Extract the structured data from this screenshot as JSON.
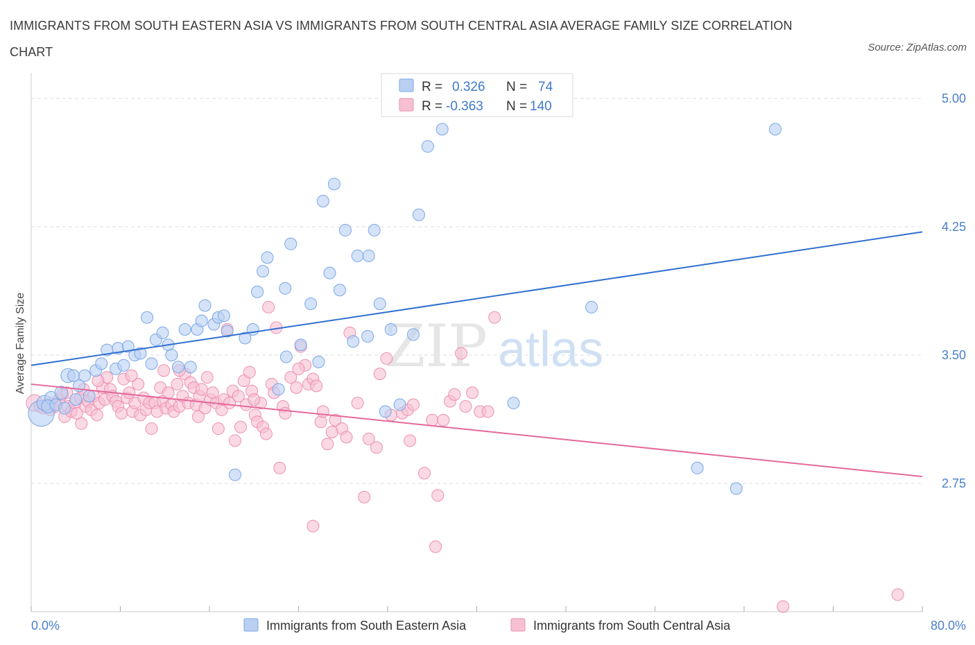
{
  "title": "IMMIGRANTS FROM SOUTH EASTERN ASIA VS IMMIGRANTS FROM SOUTH CENTRAL ASIA AVERAGE FAMILY SIZE CORRELATION CHART",
  "source": "Source: ZipAtlas.com",
  "watermark": {
    "zip": "ZIP",
    "atlas": "atlas"
  },
  "colors": {
    "blue_fill": "#b9d0f3",
    "blue_stroke": "#7aa6e6",
    "blue_line": "#2f6fd0",
    "pink_fill": "#f6c0d2",
    "pink_stroke": "#ee8fb1",
    "pink_line": "#e5689a",
    "grid": "#dddddd",
    "axis_text": "#4a7fc8"
  },
  "legend": {
    "r_label": "R =",
    "n_label": "N =",
    "items": [
      {
        "series": "blue",
        "r": "0.326",
        "n": "74"
      },
      {
        "series": "pink",
        "r": "-0.363",
        "n": "140"
      }
    ]
  },
  "chart_data": {
    "type": "scatter",
    "ylabel": "Average Family Size",
    "xlim": [
      0,
      80
    ],
    "ylim": [
      2.0,
      5.15
    ],
    "x_tick_labels": {
      "left": "0.0%",
      "right": "80.0%"
    },
    "y_ticks": [
      {
        "value": 5.0,
        "label": "5.00"
      },
      {
        "value": 4.25,
        "label": "4.25"
      },
      {
        "value": 3.5,
        "label": "3.50"
      },
      {
        "value": 2.75,
        "label": "2.75"
      }
    ],
    "grid": true,
    "series": [
      {
        "key": "blue",
        "name": "Immigrants from South Eastern Asia",
        "trend": {
          "x0": 0,
          "y0": 3.44,
          "x1": 80,
          "y1": 4.22
        },
        "points": [
          [
            0.9,
            3.16,
            2.2
          ],
          [
            1.2,
            3.22,
            1.3
          ],
          [
            1.8,
            3.25,
            1.1
          ],
          [
            2.7,
            3.28,
            1.1
          ],
          [
            3.3,
            3.38,
            1.2
          ],
          [
            3.8,
            3.38,
            1.0
          ],
          [
            4.3,
            3.32,
            1.0
          ],
          [
            4.8,
            3.38,
            1.0
          ],
          [
            5.2,
            3.26,
            1.0
          ],
          [
            5.8,
            3.41,
            1.0
          ],
          [
            6.3,
            3.45,
            1.0
          ],
          [
            6.8,
            3.53,
            1.0
          ],
          [
            7.6,
            3.42,
            1.0
          ],
          [
            7.8,
            3.54,
            1.0
          ],
          [
            8.3,
            3.44,
            1.0
          ],
          [
            8.7,
            3.55,
            1.0
          ],
          [
            9.3,
            3.5,
            1.0
          ],
          [
            9.8,
            3.51,
            1.0
          ],
          [
            10.4,
            3.72,
            1.0
          ],
          [
            10.8,
            3.45,
            1.0
          ],
          [
            11.2,
            3.59,
            1.0
          ],
          [
            11.8,
            3.63,
            1.0
          ],
          [
            12.3,
            3.56,
            1.0
          ],
          [
            12.6,
            3.5,
            1.0
          ],
          [
            13.2,
            3.43,
            1.0
          ],
          [
            13.8,
            3.65,
            1.0
          ],
          [
            14.3,
            3.43,
            1.0
          ],
          [
            14.9,
            3.65,
            1.0
          ],
          [
            15.3,
            3.7,
            1.0
          ],
          [
            15.6,
            3.79,
            1.0
          ],
          [
            16.4,
            3.68,
            1.0
          ],
          [
            16.8,
            3.72,
            1.0
          ],
          [
            17.3,
            3.73,
            1.0
          ],
          [
            17.6,
            3.64,
            1.0
          ],
          [
            18.3,
            2.8,
            1.0
          ],
          [
            19.2,
            3.6,
            1.0
          ],
          [
            19.9,
            3.65,
            1.0
          ],
          [
            20.3,
            3.87,
            1.0
          ],
          [
            20.8,
            3.99,
            1.0
          ],
          [
            21.2,
            4.07,
            1.0
          ],
          [
            22.2,
            3.3,
            1.0
          ],
          [
            22.8,
            3.89,
            1.0
          ],
          [
            22.9,
            3.49,
            1.0
          ],
          [
            23.3,
            4.15,
            1.0
          ],
          [
            24.2,
            3.56,
            1.0
          ],
          [
            25.1,
            3.8,
            1.0
          ],
          [
            25.8,
            3.46,
            1.0
          ],
          [
            26.2,
            4.4,
            1.0
          ],
          [
            26.8,
            3.98,
            1.0
          ],
          [
            27.2,
            4.5,
            1.0
          ],
          [
            27.7,
            3.88,
            1.0
          ],
          [
            28.2,
            4.23,
            1.0
          ],
          [
            28.9,
            3.58,
            1.0
          ],
          [
            29.3,
            4.08,
            1.0
          ],
          [
            30.2,
            3.61,
            1.0
          ],
          [
            30.3,
            4.08,
            1.0
          ],
          [
            30.8,
            4.23,
            1.0
          ],
          [
            31.3,
            3.8,
            1.0
          ],
          [
            31.8,
            3.17,
            1.0
          ],
          [
            32.3,
            3.65,
            1.0
          ],
          [
            33.1,
            3.21,
            1.0
          ],
          [
            34.3,
            3.62,
            1.0
          ],
          [
            34.8,
            4.32,
            1.0
          ],
          [
            35.6,
            4.72,
            1.0
          ],
          [
            36.9,
            4.82,
            1.0
          ],
          [
            43.3,
            3.22,
            1.0
          ],
          [
            50.3,
            3.78,
            1.0
          ],
          [
            59.8,
            2.84,
            1.0
          ],
          [
            63.3,
            2.72,
            1.0
          ],
          [
            66.8,
            4.82,
            1.0
          ],
          [
            1.5,
            3.2,
            1.1
          ],
          [
            2.2,
            3.21,
            1.0
          ],
          [
            3.0,
            3.19,
            1.0
          ],
          [
            4.0,
            3.24,
            1.0
          ]
        ]
      },
      {
        "key": "pink",
        "name": "Immigrants from South Central Asia",
        "trend": {
          "x0": 0,
          "y0": 3.33,
          "x1": 80,
          "y1": 2.79
        },
        "points": [
          [
            0.3,
            3.22,
            1.4
          ],
          [
            0.8,
            3.2,
            1.0
          ],
          [
            1.1,
            3.19,
            1.0
          ],
          [
            1.4,
            3.21,
            1.0
          ],
          [
            1.7,
            3.18,
            1.0
          ],
          [
            2.0,
            3.22,
            1.0
          ],
          [
            2.2,
            3.2,
            1.0
          ],
          [
            2.5,
            3.24,
            1.0
          ],
          [
            2.8,
            3.27,
            1.0
          ],
          [
            3.0,
            3.14,
            1.0
          ],
          [
            3.3,
            3.2,
            1.0
          ],
          [
            3.6,
            3.17,
            1.0
          ],
          [
            3.9,
            3.22,
            1.0
          ],
          [
            4.1,
            3.16,
            1.0
          ],
          [
            4.4,
            3.25,
            1.0
          ],
          [
            4.7,
            3.3,
            1.0
          ],
          [
            4.9,
            3.2,
            1.0
          ],
          [
            5.1,
            3.23,
            1.0
          ],
          [
            5.4,
            3.18,
            1.0
          ],
          [
            5.6,
            3.26,
            1.0
          ],
          [
            5.9,
            3.15,
            1.0
          ],
          [
            6.1,
            3.22,
            1.0
          ],
          [
            6.4,
            3.31,
            1.0
          ],
          [
            6.6,
            3.24,
            1.0
          ],
          [
            6.8,
            3.37,
            1.0
          ],
          [
            7.1,
            3.3,
            1.0
          ],
          [
            7.3,
            3.26,
            1.0
          ],
          [
            7.6,
            3.23,
            1.0
          ],
          [
            7.8,
            3.2,
            1.0
          ],
          [
            8.1,
            3.16,
            1.0
          ],
          [
            8.3,
            3.36,
            1.0
          ],
          [
            8.6,
            3.25,
            1.0
          ],
          [
            8.8,
            3.28,
            1.0
          ],
          [
            9.1,
            3.17,
            1.0
          ],
          [
            9.3,
            3.22,
            1.0
          ],
          [
            9.6,
            3.33,
            1.0
          ],
          [
            9.8,
            3.15,
            1.0
          ],
          [
            10.1,
            3.25,
            1.0
          ],
          [
            10.3,
            3.18,
            1.0
          ],
          [
            10.6,
            3.22,
            1.0
          ],
          [
            10.8,
            3.07,
            1.0
          ],
          [
            11.1,
            3.22,
            1.0
          ],
          [
            11.3,
            3.17,
            1.0
          ],
          [
            11.6,
            3.31,
            1.0
          ],
          [
            11.8,
            3.23,
            1.0
          ],
          [
            12.1,
            3.19,
            1.0
          ],
          [
            12.3,
            3.28,
            1.0
          ],
          [
            12.6,
            3.21,
            1.0
          ],
          [
            12.8,
            3.17,
            1.0
          ],
          [
            13.1,
            3.33,
            1.0
          ],
          [
            13.3,
            3.2,
            1.0
          ],
          [
            13.6,
            3.26,
            1.0
          ],
          [
            13.8,
            3.39,
            1.0
          ],
          [
            14.1,
            3.22,
            1.0
          ],
          [
            14.3,
            3.34,
            1.0
          ],
          [
            14.6,
            3.31,
            1.0
          ],
          [
            14.8,
            3.21,
            1.0
          ],
          [
            15.1,
            3.26,
            1.0
          ],
          [
            15.3,
            3.3,
            1.0
          ],
          [
            15.6,
            3.19,
            1.0
          ],
          [
            15.8,
            3.37,
            1.0
          ],
          [
            16.1,
            3.24,
            1.0
          ],
          [
            16.3,
            3.28,
            1.0
          ],
          [
            16.6,
            3.22,
            1.0
          ],
          [
            16.8,
            3.07,
            1.0
          ],
          [
            17.1,
            3.18,
            1.0
          ],
          [
            17.3,
            3.24,
            1.0
          ],
          [
            17.6,
            3.65,
            1.0
          ],
          [
            17.8,
            3.22,
            1.0
          ],
          [
            18.1,
            3.29,
            1.0
          ],
          [
            18.3,
            3.0,
            1.0
          ],
          [
            18.6,
            3.26,
            1.0
          ],
          [
            18.8,
            3.08,
            1.0
          ],
          [
            19.1,
            3.35,
            1.0
          ],
          [
            19.3,
            3.21,
            1.0
          ],
          [
            19.6,
            3.4,
            1.0
          ],
          [
            19.8,
            3.29,
            1.0
          ],
          [
            20.1,
            3.15,
            1.0
          ],
          [
            20.3,
            3.11,
            1.0
          ],
          [
            20.6,
            3.22,
            1.0
          ],
          [
            20.8,
            3.08,
            1.0
          ],
          [
            21.1,
            3.04,
            1.0
          ],
          [
            21.3,
            3.78,
            1.0
          ],
          [
            21.6,
            3.33,
            1.0
          ],
          [
            21.8,
            3.28,
            1.0
          ],
          [
            22.0,
            3.66,
            1.0
          ],
          [
            22.3,
            2.84,
            1.0
          ],
          [
            22.6,
            3.2,
            1.0
          ],
          [
            22.8,
            3.16,
            1.0
          ],
          [
            23.3,
            3.37,
            1.0
          ],
          [
            23.8,
            3.31,
            1.0
          ],
          [
            24.2,
            3.55,
            1.0
          ],
          [
            24.6,
            3.44,
            1.0
          ],
          [
            24.9,
            3.33,
            1.0
          ],
          [
            25.3,
            3.36,
            1.0
          ],
          [
            25.6,
            3.32,
            1.0
          ],
          [
            26.0,
            3.11,
            1.0
          ],
          [
            26.2,
            3.17,
            1.0
          ],
          [
            26.6,
            2.98,
            1.0
          ],
          [
            27.3,
            3.12,
            1.0
          ],
          [
            27.9,
            3.07,
            1.0
          ],
          [
            28.3,
            3.02,
            1.0
          ],
          [
            28.6,
            3.63,
            1.0
          ],
          [
            29.3,
            3.22,
            1.0
          ],
          [
            29.9,
            2.67,
            1.0
          ],
          [
            30.3,
            3.01,
            1.0
          ],
          [
            31.3,
            3.39,
            1.0
          ],
          [
            31.9,
            3.48,
            1.0
          ],
          [
            32.3,
            3.15,
            1.0
          ],
          [
            33.3,
            3.16,
            1.0
          ],
          [
            33.8,
            3.18,
            1.0
          ],
          [
            34.3,
            3.21,
            1.0
          ],
          [
            35.3,
            2.81,
            1.0
          ],
          [
            36.0,
            3.12,
            1.0
          ],
          [
            36.5,
            2.68,
            1.0
          ],
          [
            37.0,
            3.12,
            1.0
          ],
          [
            37.6,
            3.23,
            1.0
          ],
          [
            38.0,
            3.27,
            1.0
          ],
          [
            38.6,
            3.51,
            1.0
          ],
          [
            39.0,
            3.2,
            1.0
          ],
          [
            39.6,
            3.28,
            1.0
          ],
          [
            40.3,
            3.17,
            1.0
          ],
          [
            41.0,
            3.17,
            1.0
          ],
          [
            41.6,
            3.72,
            1.0
          ],
          [
            25.3,
            2.5,
            1.0
          ],
          [
            36.3,
            2.38,
            1.0
          ],
          [
            67.5,
            2.03,
            1.0
          ],
          [
            77.8,
            2.1,
            1.0
          ],
          [
            13.3,
            3.41,
            1.0
          ],
          [
            20.0,
            3.24,
            1.0
          ],
          [
            15.0,
            3.14,
            1.0
          ],
          [
            11.9,
            3.41,
            1.0
          ],
          [
            9.0,
            3.38,
            1.0
          ],
          [
            6.0,
            3.35,
            1.0
          ],
          [
            4.5,
            3.1,
            1.0
          ],
          [
            3.2,
            3.28,
            1.0
          ],
          [
            27.0,
            3.05,
            1.0
          ],
          [
            31.0,
            2.96,
            1.0
          ],
          [
            34.0,
            3.0,
            1.0
          ],
          [
            24.0,
            3.42,
            1.0
          ]
        ]
      }
    ]
  }
}
